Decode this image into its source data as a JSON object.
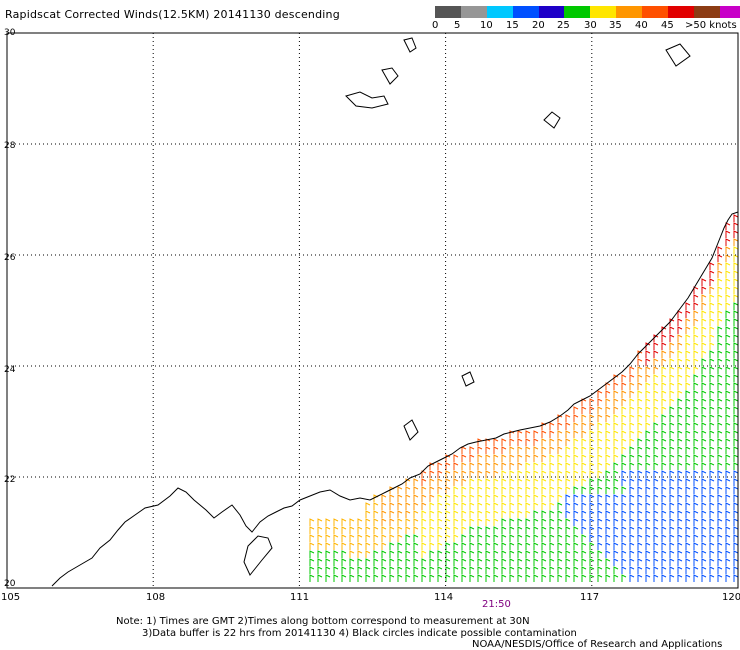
{
  "title": "Rapidscat Corrected Winds(12.5KM) 20141130 descending",
  "scale": {
    "colors": [
      "#555555",
      "#969696",
      "#00c8ff",
      "#0050ff",
      "#1e00c8",
      "#00c800",
      "#ffe600",
      "#ff9600",
      "#ff5000",
      "#e10000",
      "#8c3c14",
      "#c800c8",
      "#64008c"
    ],
    "labels": [
      "0",
      "5",
      "10",
      "15",
      "20",
      "25",
      "30",
      "35",
      "40",
      "45",
      ">50 knots"
    ]
  },
  "axes": {
    "lat_labels": [
      "30",
      "28",
      "26",
      "24",
      "22",
      "20"
    ],
    "lon_labels": [
      "105",
      "108",
      "111",
      "114",
      "117",
      "120"
    ]
  },
  "pass_time": "21:50",
  "notes": {
    "line1": "Note: 1) Times are GMT 2)Times along bottom correspond to measurement at 30N",
    "line2": "3)Data buffer is 22 hrs from 20141130 4) Black circles indicate possible contamination",
    "line3": "NOAA/NESDIS/Office of Research and Applications"
  }
}
